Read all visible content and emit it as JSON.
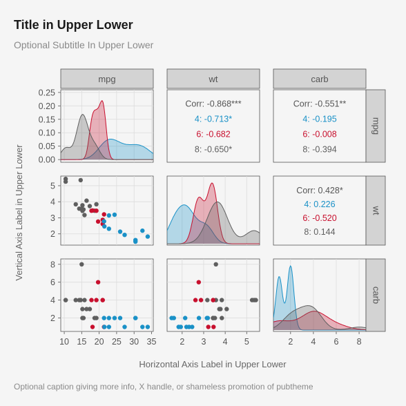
{
  "title": "Title in Upper Lower",
  "subtitle": "Optional Subtitle In Upper Lower",
  "caption": "Optional caption giving more info, X handle, or shameless promotion of pubtheme",
  "colors": {
    "4": "#1a91c7",
    "6": "#c8102e",
    "8": "#5f5f5f"
  },
  "chart_data": {
    "type": "scatter",
    "title": "Title in Upper Lower",
    "subtitle": "Optional Subtitle In Upper Lower",
    "xlabel": "Horizontal Axis Label in Upper Lower",
    "ylabel": "Vertical Axis Label in Upper Lower",
    "variables": [
      "mpg",
      "wt",
      "carb"
    ],
    "groups": [
      "4",
      "6",
      "8"
    ],
    "axes": {
      "mpg": {
        "range": [
          9,
          35.5
        ],
        "ticks": [
          10,
          15,
          20,
          25,
          30,
          35
        ]
      },
      "wt": {
        "range": [
          1.3,
          5.6
        ],
        "ticks": [
          2,
          3,
          4,
          5
        ],
        "yticks": [
          2,
          3,
          4,
          5
        ]
      },
      "carb": {
        "range": [
          0.5,
          8.6
        ],
        "ticks": [
          2,
          4,
          6,
          8
        ]
      },
      "mpg_density": {
        "range": [
          -0.01,
          0.26
        ],
        "ticks": [
          "0.00",
          "0.05",
          "0.10",
          "0.15",
          "0.20",
          "0.25"
        ]
      }
    },
    "points": [
      {
        "mpg": 21.0,
        "wt": 2.62,
        "carb": 4,
        "cyl": "6"
      },
      {
        "mpg": 21.0,
        "wt": 2.875,
        "carb": 4,
        "cyl": "6"
      },
      {
        "mpg": 22.8,
        "wt": 2.32,
        "carb": 1,
        "cyl": "4"
      },
      {
        "mpg": 21.4,
        "wt": 3.215,
        "carb": 1,
        "cyl": "6"
      },
      {
        "mpg": 18.7,
        "wt": 3.44,
        "carb": 2,
        "cyl": "8"
      },
      {
        "mpg": 18.1,
        "wt": 3.46,
        "carb": 1,
        "cyl": "6"
      },
      {
        "mpg": 14.3,
        "wt": 3.57,
        "carb": 4,
        "cyl": "8"
      },
      {
        "mpg": 24.4,
        "wt": 3.19,
        "carb": 2,
        "cyl": "4"
      },
      {
        "mpg": 22.8,
        "wt": 3.15,
        "carb": 2,
        "cyl": "4"
      },
      {
        "mpg": 19.2,
        "wt": 3.44,
        "carb": 4,
        "cyl": "6"
      },
      {
        "mpg": 17.8,
        "wt": 3.44,
        "carb": 4,
        "cyl": "6"
      },
      {
        "mpg": 16.4,
        "wt": 4.07,
        "carb": 3,
        "cyl": "8"
      },
      {
        "mpg": 17.3,
        "wt": 3.73,
        "carb": 3,
        "cyl": "8"
      },
      {
        "mpg": 15.2,
        "wt": 3.78,
        "carb": 3,
        "cyl": "8"
      },
      {
        "mpg": 10.4,
        "wt": 5.25,
        "carb": 4,
        "cyl": "8"
      },
      {
        "mpg": 10.4,
        "wt": 5.424,
        "carb": 4,
        "cyl": "8"
      },
      {
        "mpg": 14.7,
        "wt": 5.345,
        "carb": 4,
        "cyl": "8"
      },
      {
        "mpg": 32.4,
        "wt": 2.2,
        "carb": 1,
        "cyl": "4"
      },
      {
        "mpg": 30.4,
        "wt": 1.615,
        "carb": 2,
        "cyl": "4"
      },
      {
        "mpg": 33.9,
        "wt": 1.835,
        "carb": 1,
        "cyl": "4"
      },
      {
        "mpg": 21.5,
        "wt": 2.465,
        "carb": 1,
        "cyl": "4"
      },
      {
        "mpg": 15.5,
        "wt": 3.52,
        "carb": 2,
        "cyl": "8"
      },
      {
        "mpg": 15.2,
        "wt": 3.435,
        "carb": 2,
        "cyl": "8"
      },
      {
        "mpg": 13.3,
        "wt": 3.84,
        "carb": 4,
        "cyl": "8"
      },
      {
        "mpg": 19.2,
        "wt": 3.845,
        "carb": 2,
        "cyl": "8"
      },
      {
        "mpg": 27.3,
        "wt": 1.935,
        "carb": 1,
        "cyl": "4"
      },
      {
        "mpg": 26.0,
        "wt": 2.14,
        "carb": 2,
        "cyl": "4"
      },
      {
        "mpg": 30.4,
        "wt": 1.513,
        "carb": 2,
        "cyl": "4"
      },
      {
        "mpg": 15.8,
        "wt": 3.17,
        "carb": 4,
        "cyl": "8"
      },
      {
        "mpg": 19.7,
        "wt": 2.77,
        "carb": 6,
        "cyl": "6"
      },
      {
        "mpg": 15.0,
        "wt": 3.57,
        "carb": 8,
        "cyl": "8"
      },
      {
        "mpg": 21.4,
        "wt": 2.78,
        "carb": 2,
        "cyl": "4"
      }
    ],
    "correlations": [
      {
        "row": "mpg",
        "col": "wt",
        "lines": [
          {
            "text": "Corr: -0.868***",
            "group": ""
          },
          {
            "text": "4: -0.713*",
            "group": "4"
          },
          {
            "text": "6: -0.682",
            "group": "6"
          },
          {
            "text": "8: -0.650*",
            "group": "8"
          }
        ]
      },
      {
        "row": "mpg",
        "col": "carb",
        "lines": [
          {
            "text": "Corr: -0.551**",
            "group": ""
          },
          {
            "text": "4: -0.195",
            "group": "4"
          },
          {
            "text": "6: -0.008",
            "group": "6"
          },
          {
            "text": "8: -0.394",
            "group": "8"
          }
        ]
      },
      {
        "row": "wt",
        "col": "carb",
        "lines": [
          {
            "text": "Corr: 0.428*",
            "group": ""
          },
          {
            "text": "4: 0.226",
            "group": "4"
          },
          {
            "text": "6: -0.520",
            "group": "6"
          },
          {
            "text": "8: 0.144",
            "group": "8"
          }
        ]
      }
    ],
    "grid": true,
    "legend": "none"
  }
}
